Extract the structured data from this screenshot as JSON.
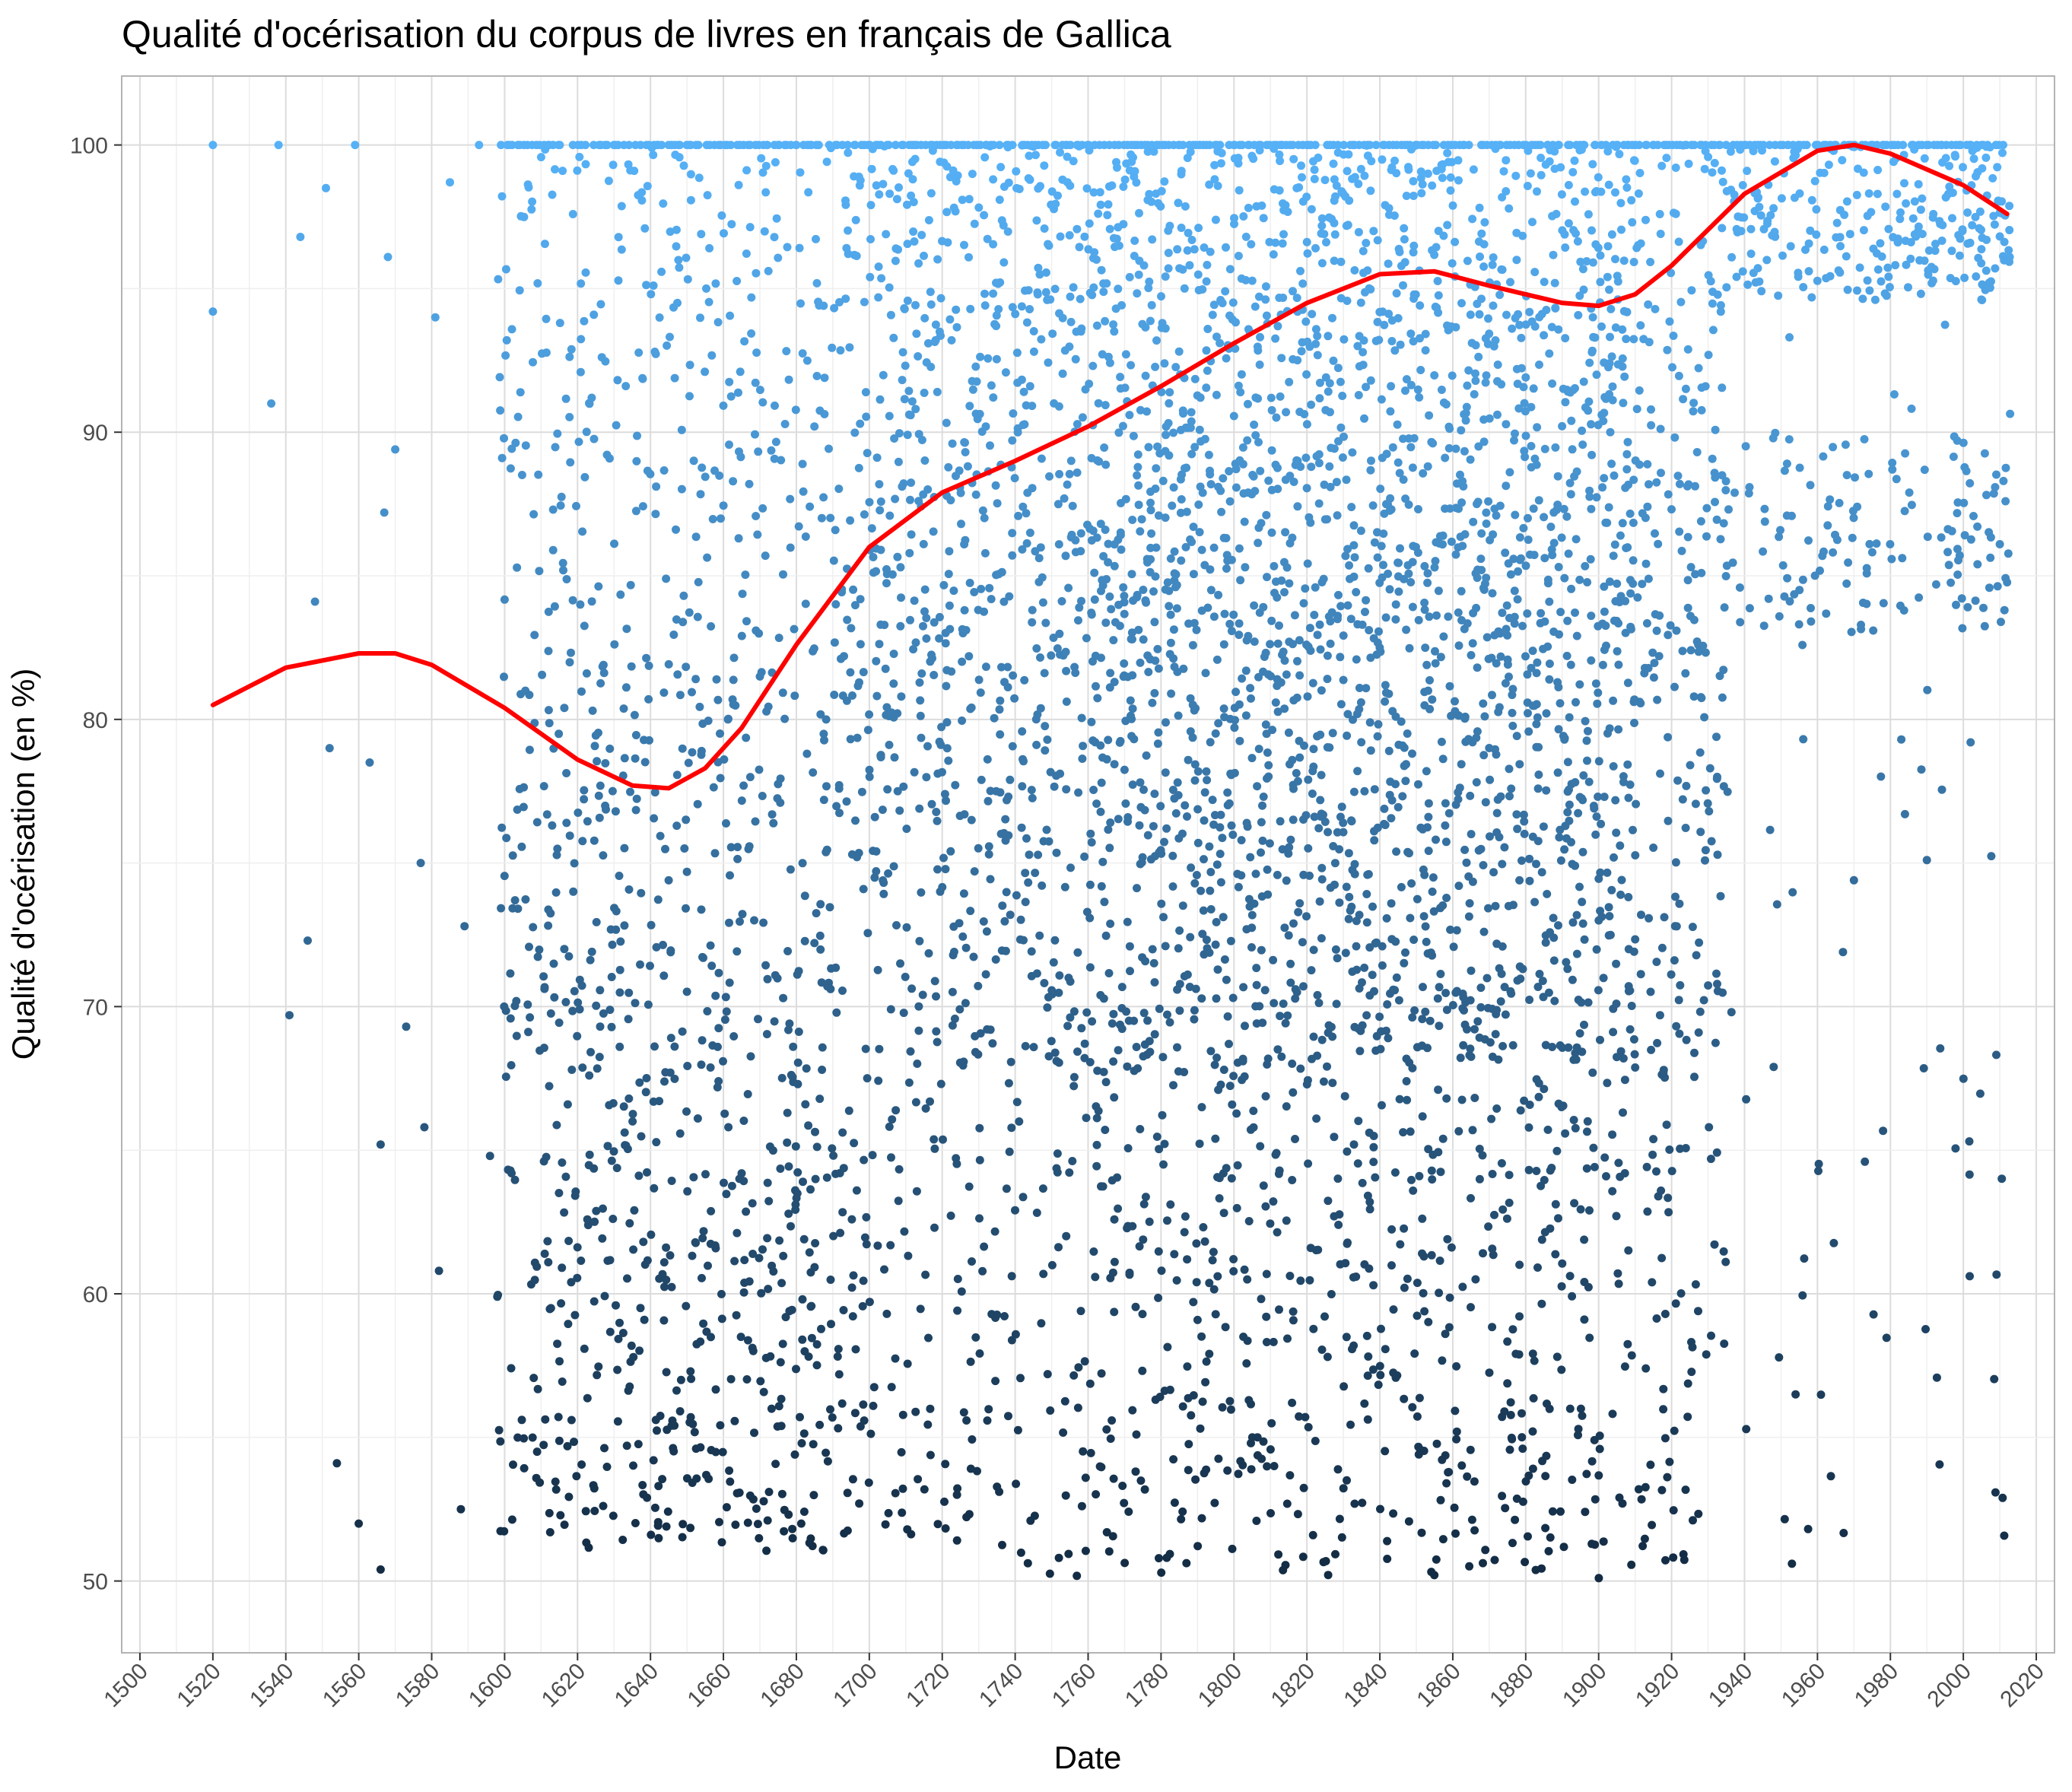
{
  "chart_data": {
    "type": "scatter",
    "title": "Qualité d'océrisation du corpus de livres en français de Gallica",
    "xlabel": "Date",
    "ylabel": "Qualité d'océrisation (en %)",
    "xlim": [
      1495,
      2025
    ],
    "ylim": [
      47.5,
      102.4
    ],
    "x_ticks": [
      1500,
      1520,
      1540,
      1560,
      1580,
      1600,
      1620,
      1640,
      1660,
      1680,
      1700,
      1720,
      1740,
      1760,
      1780,
      1800,
      1820,
      1840,
      1860,
      1880,
      1900,
      1920,
      1940,
      1960,
      1980,
      2000,
      2020
    ],
    "y_ticks": [
      50,
      60,
      70,
      80,
      90,
      100
    ],
    "grid": true,
    "point_color_low": "#132B43",
    "point_color_high": "#56B1F7",
    "smooth_color": "#FF0000",
    "sample_points": [
      {
        "x": 1520,
        "y": 100.0
      },
      {
        "x": 1520,
        "y": 94.2
      },
      {
        "x": 1538,
        "y": 100.0
      },
      {
        "x": 1536,
        "y": 91.0
      },
      {
        "x": 1541,
        "y": 69.7
      },
      {
        "x": 1544,
        "y": 96.8
      },
      {
        "x": 1546,
        "y": 72.3
      },
      {
        "x": 1548,
        "y": 84.1
      },
      {
        "x": 1551,
        "y": 98.5
      },
      {
        "x": 1552,
        "y": 79.0
      },
      {
        "x": 1554,
        "y": 54.1
      },
      {
        "x": 1559,
        "y": 100.0
      },
      {
        "x": 1560,
        "y": 52.0
      },
      {
        "x": 1563,
        "y": 78.5
      },
      {
        "x": 1566,
        "y": 50.4
      },
      {
        "x": 1566,
        "y": 65.2
      },
      {
        "x": 1567,
        "y": 87.2
      },
      {
        "x": 1568,
        "y": 96.1
      },
      {
        "x": 1570,
        "y": 89.4
      },
      {
        "x": 1573,
        "y": 69.3
      },
      {
        "x": 1577,
        "y": 75.0
      },
      {
        "x": 1578,
        "y": 65.8
      },
      {
        "x": 1581,
        "y": 94.0
      },
      {
        "x": 1582,
        "y": 60.8
      },
      {
        "x": 1585,
        "y": 98.7
      },
      {
        "x": 1588,
        "y": 52.5
      },
      {
        "x": 1589,
        "y": 72.8
      },
      {
        "x": 1593,
        "y": 100.0
      },
      {
        "x": 1596,
        "y": 64.8
      },
      {
        "x": 1598,
        "y": 59.9
      },
      {
        "x": 1599,
        "y": 100.0
      },
      {
        "x": 1953,
        "y": 50.6
      },
      {
        "x": 1954,
        "y": 56.5
      },
      {
        "x": 1948,
        "y": 67.9
      },
      {
        "x": 1967,
        "y": 71.9
      },
      {
        "x": 1970,
        "y": 74.4
      },
      {
        "x": 1973,
        "y": 64.6
      },
      {
        "x": 1984,
        "y": 76.7
      },
      {
        "x": 1990,
        "y": 75.1
      },
      {
        "x": 1983,
        "y": 79.3
      },
      {
        "x": 2002,
        "y": 79.2
      },
      {
        "x": 2011,
        "y": 88.3
      },
      {
        "x": 2010,
        "y": 86.1
      }
    ],
    "smooth_series": {
      "name": "",
      "x": [
        1520,
        1540,
        1560,
        1570,
        1580,
        1600,
        1620,
        1635,
        1645,
        1655,
        1665,
        1680,
        1700,
        1720,
        1740,
        1760,
        1780,
        1800,
        1820,
        1840,
        1855,
        1870,
        1890,
        1900,
        1910,
        1920,
        1940,
        1960,
        1970,
        1980,
        2000,
        2012
      ],
      "y": [
        80.5,
        81.8,
        82.3,
        82.3,
        81.9,
        80.4,
        78.6,
        77.7,
        77.6,
        78.3,
        79.7,
        82.6,
        86.0,
        87.9,
        89.0,
        90.2,
        91.6,
        93.1,
        94.5,
        95.5,
        95.6,
        95.1,
        94.5,
        94.4,
        94.8,
        95.8,
        98.3,
        99.8,
        100.0,
        99.7,
        98.6,
        97.6
      ]
    }
  }
}
